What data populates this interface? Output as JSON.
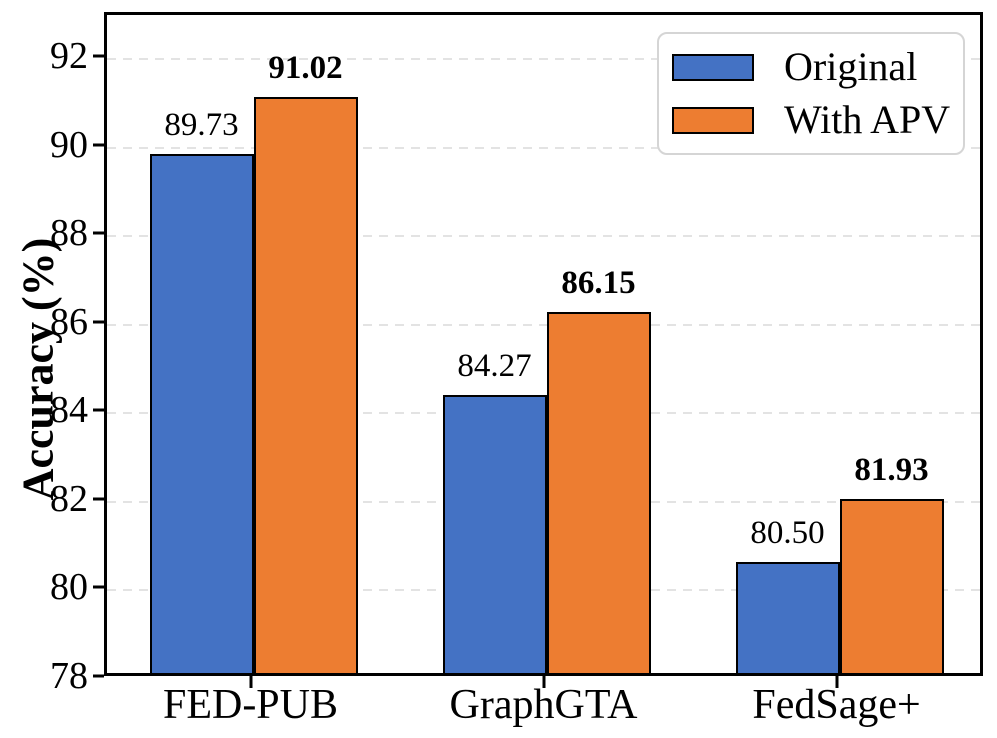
{
  "chart_data": {
    "type": "bar",
    "title": "",
    "xlabel": "",
    "ylabel": "Accuracy (%)",
    "categories": [
      "FED-PUB",
      "GraphGTA",
      "FedSage+"
    ],
    "series": [
      {
        "name": "Original",
        "color": "#4472C4",
        "values": [
          89.73,
          84.27,
          80.5
        ],
        "value_labels": [
          "89.73",
          "84.27",
          "80.50"
        ],
        "value_label_style": "normal"
      },
      {
        "name": "With APV",
        "color": "#ED7D31",
        "values": [
          91.02,
          86.15,
          81.93
        ],
        "value_labels": [
          "91.02",
          "86.15",
          "81.93"
        ],
        "value_label_style": "bold"
      }
    ],
    "ylim": [
      78,
      93
    ],
    "yticks": [
      "78",
      "80",
      "82",
      "84",
      "86",
      "88",
      "90",
      "92"
    ],
    "grid": "horizontal-dashed",
    "grid_color": "#e3e3e3",
    "bar_edge_color": "#000000",
    "legend_position": "upper right"
  },
  "legend": {
    "items": [
      {
        "label": "Original",
        "color": "#4472C4"
      },
      {
        "label": "With APV",
        "color": "#ED7D31"
      }
    ]
  }
}
